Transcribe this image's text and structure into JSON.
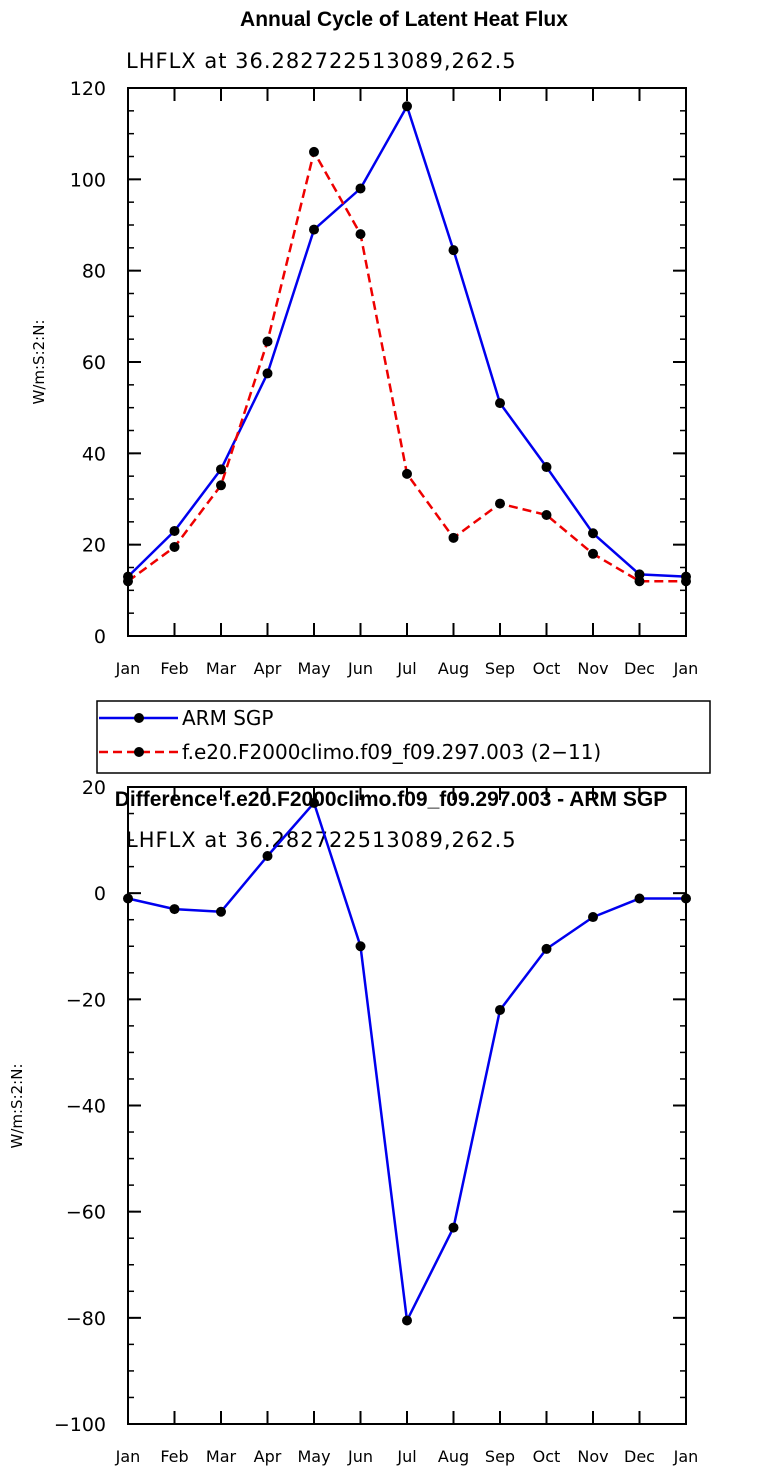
{
  "chart_data": [
    {
      "type": "line",
      "title": "Annual Cycle of Latent Heat Flux",
      "subtitle": "LHFLX at 36.282722513089,262.5",
      "xlabel": "",
      "ylabel": "W/m:S:2:N:",
      "ylim": [
        0,
        120
      ],
      "yticks": [
        0,
        20,
        40,
        60,
        80,
        100,
        120
      ],
      "categories": [
        "Jan",
        "Feb",
        "Mar",
        "Apr",
        "May",
        "Jun",
        "Jul",
        "Aug",
        "Sep",
        "Oct",
        "Nov",
        "Dec",
        "Jan"
      ],
      "grid": false,
      "legend": "below",
      "series": [
        {
          "name": "ARM SGP",
          "color": "#0000ee",
          "style": "solid",
          "marker": "dot",
          "values": [
            13,
            23,
            36.5,
            57.5,
            89,
            98,
            116,
            84.5,
            51,
            37,
            22.5,
            13.5,
            13
          ]
        },
        {
          "name": "f.e20.F2000climo.f09_f09.297.003 (2−11)",
          "color": "#ee0000",
          "style": "dashed",
          "marker": "dot",
          "values": [
            12,
            19.5,
            33,
            64.5,
            106,
            88,
            35.5,
            21.5,
            29,
            26.5,
            18,
            12,
            12
          ]
        }
      ]
    },
    {
      "type": "line",
      "title": "Difference f.e20.F2000climo.f09_f09.297.003 - ARM SGP",
      "subtitle": "LHFLX at 36.282722513089,262.5",
      "xlabel": "",
      "ylabel": "W/m:S:2:N:",
      "ylim": [
        -100,
        20
      ],
      "yticks": [
        -100,
        -80,
        -60,
        -40,
        -20,
        0,
        20
      ],
      "categories": [
        "Jan",
        "Feb",
        "Mar",
        "Apr",
        "May",
        "Jun",
        "Jul",
        "Aug",
        "Sep",
        "Oct",
        "Nov",
        "Dec",
        "Jan"
      ],
      "grid": false,
      "series": [
        {
          "color": "#0000ee",
          "style": "solid",
          "marker": "dot",
          "values": [
            -1,
            -3,
            -3.5,
            7,
            17,
            -10,
            -80.5,
            -63,
            -22,
            -10.5,
            -4.5,
            -1,
            -1
          ]
        }
      ]
    }
  ]
}
